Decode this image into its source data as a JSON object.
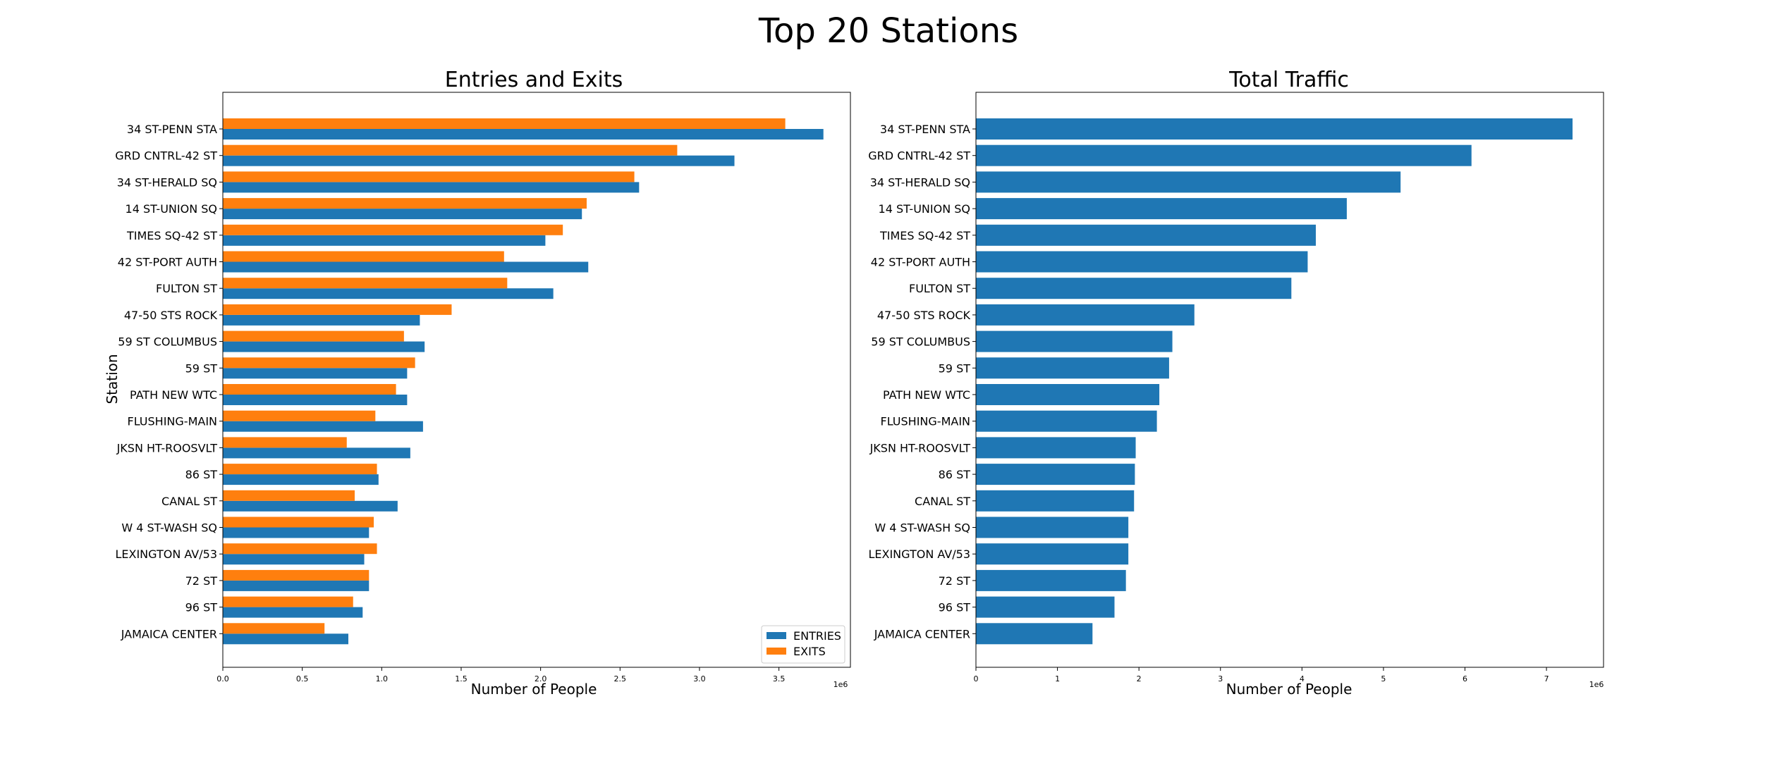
{
  "figure": {
    "title": "Top 20 Stations"
  },
  "colors": {
    "entries": "#1f77b4",
    "exits": "#ff7f0e",
    "total": "#1f77b4"
  },
  "chart_data": [
    {
      "type": "bar",
      "orientation": "horizontal",
      "title": "Entries and Exits",
      "xlabel": "Number of People",
      "ylabel": "Station",
      "xlim": [
        0,
        3950000
      ],
      "xticks": [
        0,
        500000,
        1000000,
        1500000,
        2000000,
        2500000,
        3000000,
        3500000
      ],
      "xtick_labels": [
        "0.0",
        "0.5",
        "1.0",
        "1.5",
        "2.0",
        "2.5",
        "3.0",
        "3.5"
      ],
      "offset_text": "1e6",
      "legend_position": "lower-right",
      "categories": [
        "34 ST-PENN STA",
        "GRD CNTRL-42 ST",
        "34 ST-HERALD SQ",
        "14 ST-UNION SQ",
        "TIMES SQ-42 ST",
        "42 ST-PORT AUTH",
        "FULTON ST",
        "47-50 STS ROCK",
        "59 ST COLUMBUS",
        "59 ST",
        "PATH NEW WTC",
        "FLUSHING-MAIN",
        "JKSN HT-ROOSVLT",
        "86 ST",
        "CANAL ST",
        "W 4 ST-WASH SQ",
        "LEXINGTON AV/53",
        "72 ST",
        "96 ST",
        "JAMAICA CENTER"
      ],
      "series": [
        {
          "name": "ENTRIES",
          "color": "#1f77b4",
          "values": [
            3780000,
            3220000,
            2620000,
            2260000,
            2030000,
            2300000,
            2080000,
            1240000,
            1270000,
            1160000,
            1160000,
            1260000,
            1180000,
            980000,
            1100000,
            920000,
            890000,
            920000,
            880000,
            790000
          ]
        },
        {
          "name": "EXITS",
          "color": "#ff7f0e",
          "values": [
            3540000,
            2860000,
            2590000,
            2290000,
            2140000,
            1770000,
            1790000,
            1440000,
            1140000,
            1210000,
            1090000,
            960000,
            780000,
            970000,
            830000,
            950000,
            970000,
            920000,
            820000,
            640000
          ]
        }
      ]
    },
    {
      "type": "bar",
      "orientation": "horizontal",
      "title": "Total Traffic",
      "xlabel": "Number of People",
      "ylabel": "",
      "xlim": [
        0,
        7700000
      ],
      "xticks": [
        0,
        1000000,
        2000000,
        3000000,
        4000000,
        5000000,
        6000000,
        7000000
      ],
      "xtick_labels": [
        "0",
        "1",
        "2",
        "3",
        "4",
        "5",
        "6",
        "7"
      ],
      "offset_text": "1e6",
      "categories": [
        "34 ST-PENN STA",
        "GRD CNTRL-42 ST",
        "34 ST-HERALD SQ",
        "14 ST-UNION SQ",
        "TIMES SQ-42 ST",
        "42 ST-PORT AUTH",
        "FULTON ST",
        "47-50 STS ROCK",
        "59 ST COLUMBUS",
        "59 ST",
        "PATH NEW WTC",
        "FLUSHING-MAIN",
        "JKSN HT-ROOSVLT",
        "86 ST",
        "CANAL ST",
        "W 4 ST-WASH SQ",
        "LEXINGTON AV/53",
        "72 ST",
        "96 ST",
        "JAMAICA CENTER"
      ],
      "values": [
        7320000,
        6080000,
        5210000,
        4550000,
        4170000,
        4070000,
        3870000,
        2680000,
        2410000,
        2370000,
        2250000,
        2220000,
        1960000,
        1950000,
        1940000,
        1870000,
        1870000,
        1840000,
        1700000,
        1430000
      ]
    }
  ]
}
